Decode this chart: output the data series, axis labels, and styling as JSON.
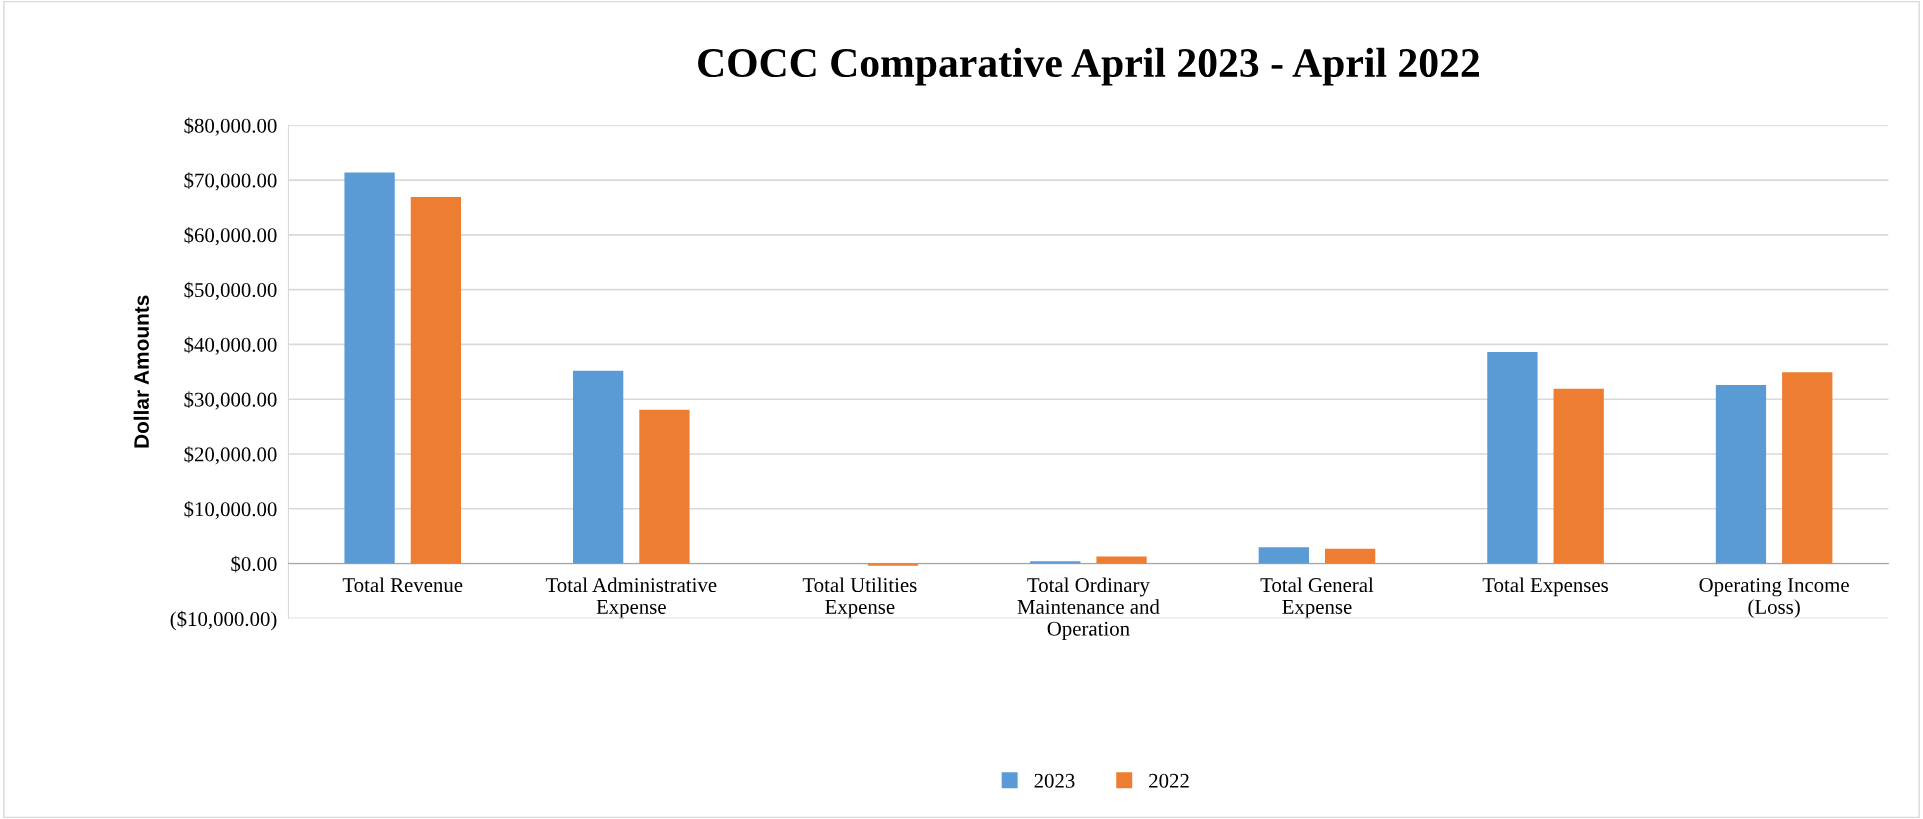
{
  "chart_data": {
    "type": "bar",
    "title": "COCC Comparative April 2023 - April 2022",
    "ylabel": "Dollar Amounts",
    "categories": [
      "Total Revenue",
      "Total Administrative\nExpense",
      "Total Utilities\nExpense",
      "Total Ordinary\nMaintenance and\nOperation",
      "Total General\nExpense",
      "Total Expenses",
      "Operating Income\n(Loss)"
    ],
    "series": [
      {
        "name": "2023",
        "color": "#5b9bd5",
        "values": [
          71400,
          35200,
          0,
          400,
          3000,
          38600,
          32600
        ]
      },
      {
        "name": "2022",
        "color": "#ed7d31",
        "values": [
          66900,
          28100,
          -400,
          1300,
          2700,
          31900,
          34900
        ]
      }
    ],
    "ylim": [
      -10000,
      80000
    ],
    "yticks": [
      {
        "value": -10000,
        "label": "($10,000.00)"
      },
      {
        "value": 0,
        "label": "$0.00"
      },
      {
        "value": 10000,
        "label": "$10,000.00"
      },
      {
        "value": 20000,
        "label": "$20,000.00"
      },
      {
        "value": 30000,
        "label": "$30,000.00"
      },
      {
        "value": 40000,
        "label": "$40,000.00"
      },
      {
        "value": 50000,
        "label": "$50,000.00"
      },
      {
        "value": 60000,
        "label": "$60,000.00"
      },
      {
        "value": 70000,
        "label": "$70,000.00"
      },
      {
        "value": 80000,
        "label": "$80,000.00"
      }
    ],
    "grid": "y",
    "legend": "bottom"
  }
}
